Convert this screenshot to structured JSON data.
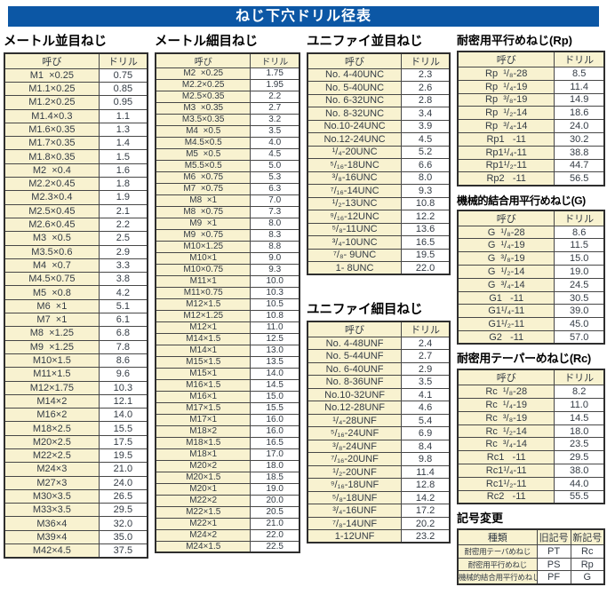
{
  "title": "ねじ下穴ドリル径表",
  "colors": {
    "banner_blue": "#0c57a5",
    "cell_cream": "#f8f2d0",
    "border_dark": "#474747",
    "text": "#333b44"
  },
  "tables": {
    "metric_coarse": {
      "heading": "メートル並目ねじ",
      "headers": [
        "呼び",
        "ドリル"
      ],
      "rows": [
        [
          "M1  ×0.25",
          "0.75"
        ],
        [
          "M1.1×0.25",
          "0.85"
        ],
        [
          "M1.2×0.25",
          "0.95"
        ],
        [
          "M1.4×0.3",
          "1.1"
        ],
        [
          "M1.6×0.35",
          "1.3"
        ],
        [
          "M1.7×0.35",
          "1.4"
        ],
        [
          "M1.8×0.35",
          "1.5"
        ],
        [
          "M2  ×0.4",
          "1.6"
        ],
        [
          "M2.2×0.45",
          "1.8"
        ],
        [
          "M2.3×0.4",
          "1.9"
        ],
        [
          "M2.5×0.45",
          "2.1"
        ],
        [
          "M2.6×0.45",
          "2.2"
        ],
        [
          "M3  ×0.5",
          "2.5"
        ],
        [
          "M3.5×0.6",
          "2.9"
        ],
        [
          "M4  ×0.7",
          "3.3"
        ],
        [
          "M4.5×0.75",
          "3.8"
        ],
        [
          "M5  ×0.8",
          "4.2"
        ],
        [
          "M6  ×1",
          "5.1"
        ],
        [
          "M7  ×1",
          "6.1"
        ],
        [
          "M8  ×1.25",
          "6.8"
        ],
        [
          "M9  ×1.25",
          "7.8"
        ],
        [
          "M10×1.5",
          "8.6"
        ],
        [
          "M11×1.5",
          "9.6"
        ],
        [
          "M12×1.75",
          "10.3"
        ],
        [
          "M14×2",
          "12.1"
        ],
        [
          "M16×2",
          "14.0"
        ],
        [
          "M18×2.5",
          "15.5"
        ],
        [
          "M20×2.5",
          "17.5"
        ],
        [
          "M22×2.5",
          "19.5"
        ],
        [
          "M24×3",
          "21.0"
        ],
        [
          "M27×3",
          "24.0"
        ],
        [
          "M30×3.5",
          "26.5"
        ],
        [
          "M33×3.5",
          "29.5"
        ],
        [
          "M36×4",
          "32.0"
        ],
        [
          "M39×4",
          "35.0"
        ],
        [
          "M42×4.5",
          "37.5"
        ]
      ]
    },
    "metric_fine": {
      "heading": "メートル細目ねじ",
      "headers": [
        "呼び",
        "ドリル"
      ],
      "rows": [
        [
          "M2  ×0.25",
          "1.75"
        ],
        [
          "M2.2×0.25",
          "1.95"
        ],
        [
          "M2.5×0.35",
          "2.2"
        ],
        [
          "M3  ×0.35",
          "2.7"
        ],
        [
          "M3.5×0.35",
          "3.2"
        ],
        [
          "M4  ×0.5",
          "3.5"
        ],
        [
          "M4.5×0.5",
          "4.0"
        ],
        [
          "M5  ×0.5",
          "4.5"
        ],
        [
          "M5.5×0.5",
          "5.0"
        ],
        [
          "M6  ×0.75",
          "5.3"
        ],
        [
          "M7  ×0.75",
          "6.3"
        ],
        [
          "M8  ×1",
          "7.0"
        ],
        [
          "M8  ×0.75",
          "7.3"
        ],
        [
          "M9  ×1",
          "8.0"
        ],
        [
          "M9  ×0.75",
          "8.3"
        ],
        [
          "M10×1.25",
          "8.8"
        ],
        [
          "M10×1",
          "9.0"
        ],
        [
          "M10×0.75",
          "9.3"
        ],
        [
          "M11×1",
          "10.0"
        ],
        [
          "M11×0.75",
          "10.3"
        ],
        [
          "M12×1.5",
          "10.5"
        ],
        [
          "M12×1.25",
          "10.8"
        ],
        [
          "M12×1",
          "11.0"
        ],
        [
          "M14×1.5",
          "12.5"
        ],
        [
          "M14×1",
          "13.0"
        ],
        [
          "M15×1.5",
          "13.5"
        ],
        [
          "M15×1",
          "14.0"
        ],
        [
          "M16×1.5",
          "14.5"
        ],
        [
          "M16×1",
          "15.0"
        ],
        [
          "M17×1.5",
          "15.5"
        ],
        [
          "M17×1",
          "16.0"
        ],
        [
          "M18×2",
          "16.0"
        ],
        [
          "M18×1.5",
          "16.5"
        ],
        [
          "M18×1",
          "17.0"
        ],
        [
          "M20×2",
          "18.0"
        ],
        [
          "M20×1.5",
          "18.5"
        ],
        [
          "M20×1",
          "19.0"
        ],
        [
          "M22×2",
          "20.0"
        ],
        [
          "M22×1.5",
          "20.5"
        ],
        [
          "M22×1",
          "21.0"
        ],
        [
          "M24×2",
          "22.0"
        ],
        [
          "M24×1.5",
          "22.5"
        ]
      ]
    },
    "unified_coarse": {
      "heading": "ユニファイ並目ねじ",
      "headers": [
        "呼び",
        "ドリル"
      ],
      "rows": [
        [
          "No. 4-40UNC",
          "2.3"
        ],
        [
          "No. 5-40UNC",
          "2.6"
        ],
        [
          "No. 6-32UNC",
          "2.8"
        ],
        [
          "No. 8-32UNC",
          "3.4"
        ],
        [
          "No.10-24UNC",
          "3.9"
        ],
        [
          "No.12-24UNC",
          "4.5"
        ],
        [
          "¹/₄-20UNC",
          "5.2"
        ],
        [
          "⁵/₁₆-18UNC",
          "6.6"
        ],
        [
          "³/₈-16UNC",
          "8.0"
        ],
        [
          "⁷/₁₆-14UNC",
          "9.3"
        ],
        [
          "¹/₂-13UNC",
          "10.8"
        ],
        [
          "⁹/₁₆-12UNC",
          "12.2"
        ],
        [
          "⁵/₈-11UNC",
          "13.6"
        ],
        [
          "³/₄-10UNC",
          "16.5"
        ],
        [
          "⁷/₈- 9UNC",
          "19.5"
        ],
        [
          "1- 8UNC",
          "22.0"
        ]
      ]
    },
    "unified_fine": {
      "heading": "ユニファイ細目ねじ",
      "headers": [
        "呼び",
        "ドリル"
      ],
      "rows": [
        [
          "No. 4-48UNF",
          "2.4"
        ],
        [
          "No. 5-44UNF",
          "2.7"
        ],
        [
          "No. 6-40UNF",
          "2.9"
        ],
        [
          "No. 8-36UNF",
          "3.5"
        ],
        [
          "No.10-32UNF",
          "4.1"
        ],
        [
          "No.12-28UNF",
          "4.6"
        ],
        [
          "¹/₄-28UNF",
          "5.4"
        ],
        [
          "⁵/₁₆-24UNF",
          "6.9"
        ],
        [
          "³/₈-24UNF",
          "8.4"
        ],
        [
          "⁷/₁₆-20UNF",
          "9.8"
        ],
        [
          "¹/₂-20UNF",
          "11.4"
        ],
        [
          "⁹/₁₆-18UNF",
          "12.8"
        ],
        [
          "⁵/₈-18UNF",
          "14.2"
        ],
        [
          "³/₄-16UNF",
          "17.2"
        ],
        [
          "⁷/₈-14UNF",
          "20.2"
        ],
        [
          "1-12UNF",
          "23.2"
        ]
      ]
    },
    "rp": {
      "heading": "耐密用平行めねじ(Rp)",
      "headers": [
        "呼び",
        "ドリル"
      ],
      "rows": [
        [
          "Rp  ¹/₈-28",
          "8.5"
        ],
        [
          "Rp  ¹/₄-19",
          "11.4"
        ],
        [
          "Rp  ³/₈-19",
          "14.9"
        ],
        [
          "Rp  ¹/₂-14",
          "18.6"
        ],
        [
          "Rp  ³/₄-14",
          "24.0"
        ],
        [
          "Rp1   -11",
          "30.2"
        ],
        [
          "Rp1¹/₄-11",
          "38.8"
        ],
        [
          "Rp1¹/₂-11",
          "44.7"
        ],
        [
          "Rp2   -11",
          "56.5"
        ]
      ]
    },
    "g": {
      "heading": "機械的結合用平行めねじ(G)",
      "headers": [
        "呼び",
        "ドリル"
      ],
      "rows": [
        [
          "G  ¹/₈-28",
          "8.6"
        ],
        [
          "G  ¹/₄-19",
          "11.5"
        ],
        [
          "G  ³/₈-19",
          "15.0"
        ],
        [
          "G  ¹/₂-14",
          "19.0"
        ],
        [
          "G  ³/₄-14",
          "24.5"
        ],
        [
          "G1   -11",
          "30.5"
        ],
        [
          "G1¹/₄-11",
          "39.0"
        ],
        [
          "G1¹/₂-11",
          "45.0"
        ],
        [
          "G2   -11",
          "57.0"
        ]
      ]
    },
    "rc": {
      "heading": "耐密用テーパーめねじ(Rc)",
      "headers": [
        "呼び",
        "ドリル"
      ],
      "rows": [
        [
          "Rc  ¹/₈-28",
          "8.2"
        ],
        [
          "Rc  ¹/₄-19",
          "11.0"
        ],
        [
          "Rc  ³/₈-19",
          "14.5"
        ],
        [
          "Rc  ¹/₂-14",
          "18.0"
        ],
        [
          "Rc  ³/₄-14",
          "23.5"
        ],
        [
          "Rc1   -11",
          "29.5"
        ],
        [
          "Rc1¹/₄-11",
          "38.0"
        ],
        [
          "Rc1¹/₂-11",
          "44.0"
        ],
        [
          "Rc2   -11",
          "55.5"
        ]
      ]
    },
    "symbol_change": {
      "heading": "記号変更",
      "headers": [
        "種類",
        "旧記号",
        "新記号"
      ],
      "rows": [
        [
          "耐密用テーパめねじ",
          "PT",
          "Rc"
        ],
        [
          "耐密用平行めねじ",
          "PS",
          "Rp"
        ],
        [
          "機械的結合用平行めねじ",
          "PF",
          "G"
        ]
      ]
    }
  }
}
